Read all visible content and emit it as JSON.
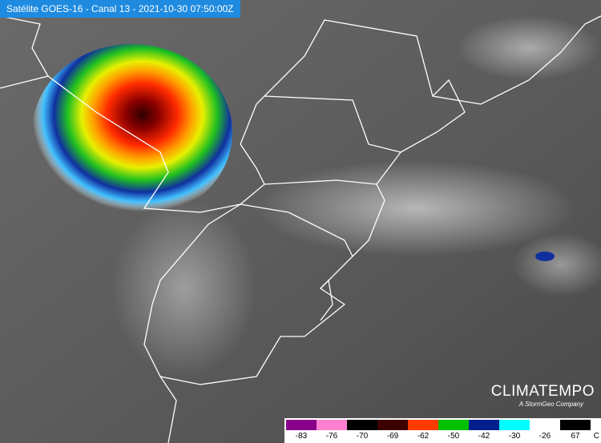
{
  "header": {
    "title": "Satélite GOES-16 - Canal 13 - 2021-10-30 07:50:00Z"
  },
  "brand": {
    "name": "CLIMATEMPO",
    "tagline": "A StormGeo Company"
  },
  "legend": {
    "labels": [
      -83,
      -76,
      -70,
      -69,
      -62,
      -50,
      -42,
      -30,
      -26,
      67
    ],
    "colors": [
      "#8a008a",
      "#ff80d0",
      "#000000",
      "#3c0000",
      "#ff3c00",
      "#00c000",
      "#001e8c",
      "#00ffff",
      "#ffffff",
      "#000000"
    ],
    "unit": "C"
  }
}
